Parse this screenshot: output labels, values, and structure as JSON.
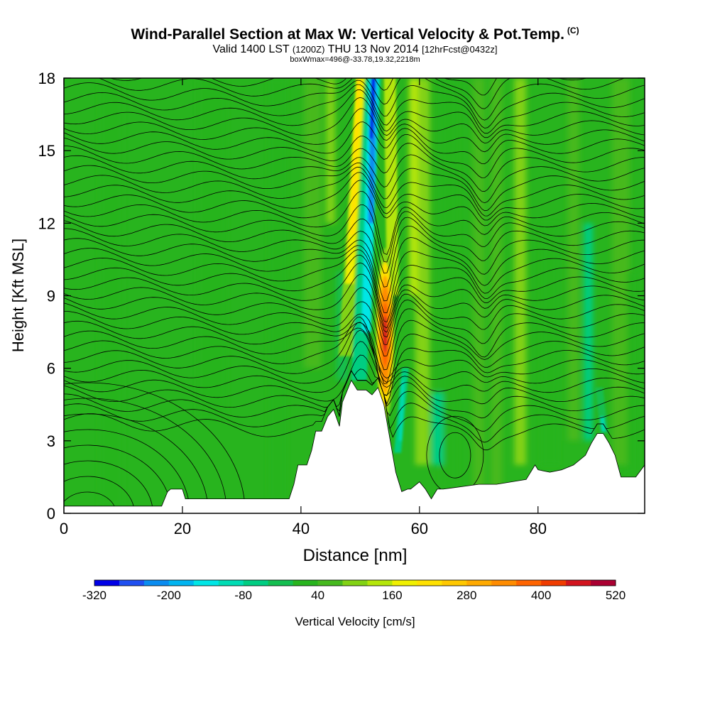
{
  "chart_data": {
    "type": "heatmap",
    "title": "Wind-Parallel Section at Max W: Vertical Velocity & Pot.Temp.",
    "title_mark": "(C)",
    "subtitle": {
      "valid": "Valid 1400 LST",
      "utc": "(1200Z)",
      "date": "THU 13 Nov 2014",
      "fcst": "[12hrFcst@0432z]"
    },
    "info_line": "boxWmax=496@-33.78,19.32,2218m",
    "xlabel": "Distance [nm]",
    "ylabel": "Height [Kft MSL]",
    "xlim": [
      0,
      98
    ],
    "ylim": [
      0,
      18
    ],
    "x_ticks": [
      "0",
      "20",
      "40",
      "60",
      "80"
    ],
    "y_ticks": [
      "0",
      "3",
      "6",
      "9",
      "12",
      "15",
      "18"
    ],
    "colorbar": {
      "label": "Vertical Velocity [cm/s]",
      "tick_labels": [
        "-320",
        "-200",
        "-80",
        "40",
        "160",
        "280",
        "400",
        "520"
      ],
      "tick_values": [
        -320,
        -200,
        -80,
        40,
        160,
        280,
        400,
        520
      ],
      "bounds": [
        -320,
        -280,
        -240,
        -200,
        -160,
        -120,
        -80,
        -40,
        0,
        40,
        80,
        120,
        160,
        200,
        240,
        280,
        320,
        360,
        400,
        440,
        480,
        520
      ],
      "colors": [
        "#0000e6",
        "#1f4ff0",
        "#0a8cf0",
        "#00b4f0",
        "#00e6e6",
        "#00dcb4",
        "#00cd82",
        "#14be50",
        "#28b41e",
        "#46b91e",
        "#82d214",
        "#b4e60a",
        "#f0f000",
        "#ffe100",
        "#ffc800",
        "#ffaa00",
        "#ff8c00",
        "#ff6400",
        "#f03c00",
        "#d2141e",
        "#aa0032"
      ]
    },
    "terrain_profile": {
      "distance_nm": [
        0,
        16.5,
        17,
        17.5,
        18,
        20,
        20.5,
        30,
        38,
        38.8,
        39.5,
        41,
        41.8,
        42.5,
        43.5,
        44.5,
        45.5,
        46.5,
        47,
        48.5,
        49.5,
        51,
        52,
        53,
        54,
        56,
        57,
        58,
        58.5,
        60,
        61,
        62,
        63,
        64,
        70,
        73,
        78,
        79.5,
        80,
        82,
        84,
        86,
        88,
        89,
        90,
        91,
        92,
        93,
        94,
        96.5,
        98
      ],
      "height_kft": [
        0.3,
        0.3,
        0.6,
        0.9,
        1.0,
        1.0,
        0.6,
        0.6,
        0.6,
        1.2,
        2.0,
        2.0,
        2.6,
        3.4,
        3.4,
        4.0,
        4.3,
        3.6,
        4.6,
        5.5,
        5.1,
        5.1,
        4.9,
        5.2,
        4.5,
        1.7,
        0.9,
        1.0,
        1.0,
        1.3,
        1.0,
        0.6,
        1.0,
        1.0,
        1.2,
        1.2,
        1.4,
        2.0,
        1.8,
        1.7,
        1.8,
        2.0,
        2.4,
        2.9,
        3.3,
        3.3,
        2.9,
        2.4,
        1.5,
        1.5,
        2.0
      ]
    },
    "velocity_features": [
      {
        "name": "downdraft-core",
        "distance_nm": 52.2,
        "height_from": 5.8,
        "height_to": 18,
        "min_cm_s": -320
      },
      {
        "name": "updraft-core",
        "distance_nm": 54.2,
        "height_from": 4.0,
        "height_to": 10.8,
        "max_cm_s": 496
      },
      {
        "name": "upper-updraft-band",
        "distance_nm": 48.8,
        "height_from": 9.5,
        "height_to": 18,
        "max_cm_s": 200
      },
      {
        "name": "lee-downdraft",
        "distance_nm": 56.8,
        "height_from": 2.5,
        "height_to": 6,
        "min_cm_s": -120
      },
      {
        "name": "east-downdraft",
        "distance_nm": 91.0,
        "height_from": 3.3,
        "height_to": 5.0,
        "min_cm_s": -120
      }
    ]
  }
}
